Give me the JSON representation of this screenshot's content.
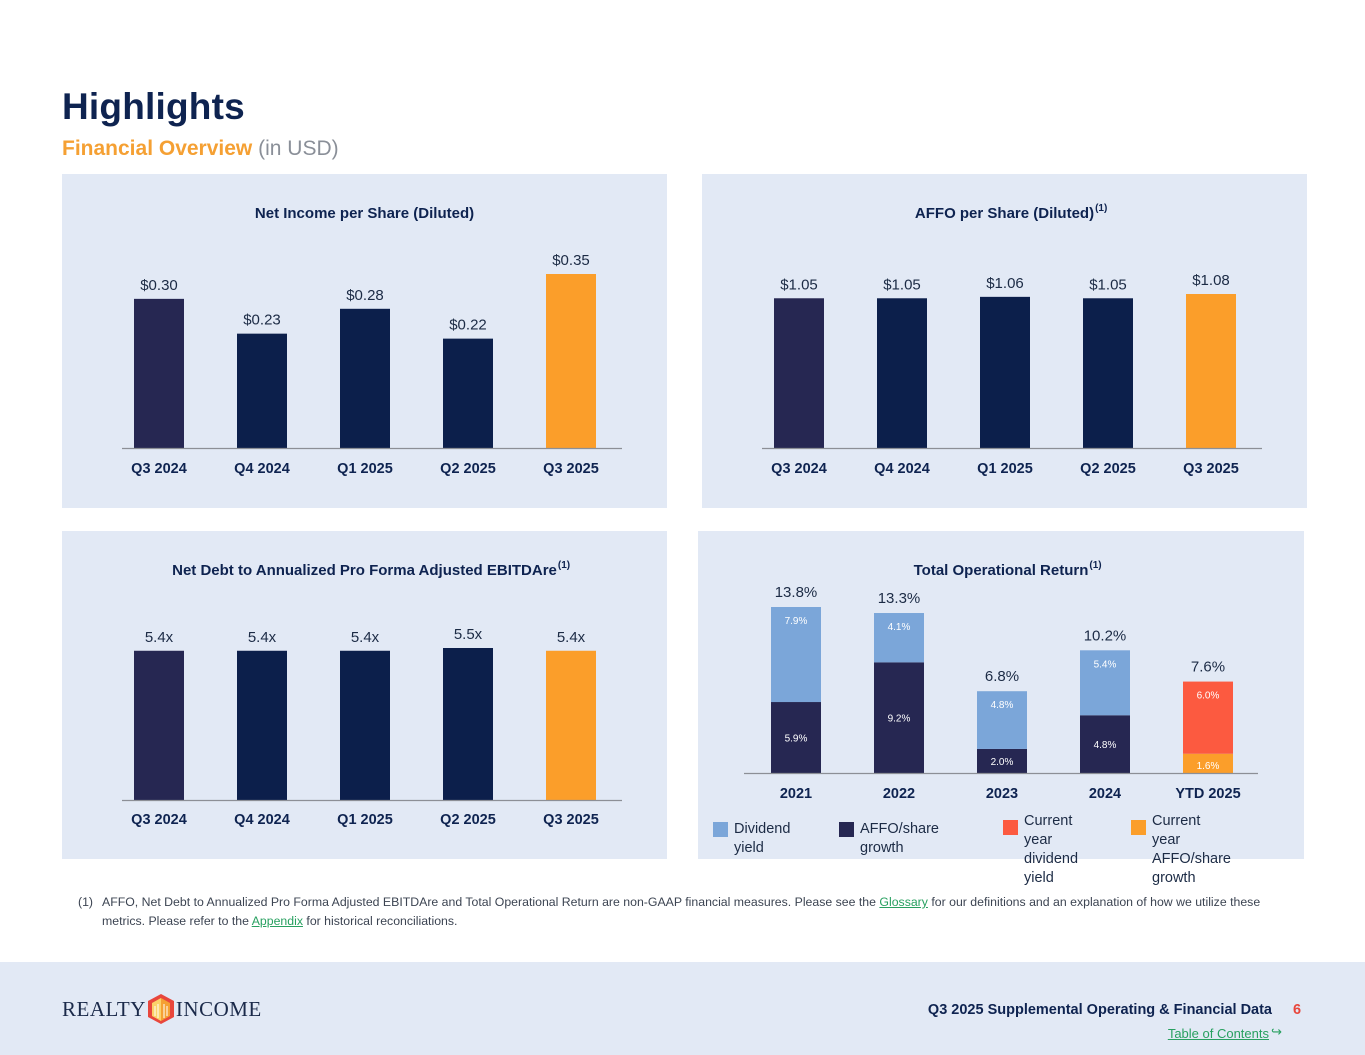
{
  "header": {
    "title": "Highlights",
    "subtitle_accent": "Financial Overview",
    "subtitle_muted": "(in USD)"
  },
  "colors": {
    "navy_dark": "#262752",
    "navy": "#0c1f4b",
    "orange": "#fb9e2a",
    "light_blue": "#7ba6d9",
    "red_orange": "#fc5a40",
    "panel_bg": "#e2e9f5"
  },
  "chart_data": [
    {
      "type": "bar",
      "title": "Net Income per Share (Diluted)",
      "footnote_ref": "",
      "categories": [
        "Q3 2024",
        "Q4 2024",
        "Q1 2025",
        "Q2 2025",
        "Q3 2025"
      ],
      "values": [
        0.3,
        0.23,
        0.28,
        0.22,
        0.35
      ],
      "labels": [
        "$0.30",
        "$0.23",
        "$0.28",
        "$0.22",
        "$0.35"
      ],
      "ylim": [
        0,
        0.35
      ]
    },
    {
      "type": "bar",
      "title": "AFFO per Share (Diluted)",
      "footnote_ref": "(1)",
      "categories": [
        "Q3 2024",
        "Q4 2024",
        "Q1 2025",
        "Q2 2025",
        "Q3 2025"
      ],
      "values": [
        1.05,
        1.05,
        1.06,
        1.05,
        1.08
      ],
      "labels": [
        "$1.05",
        "$1.05",
        "$1.06",
        "$1.05",
        "$1.08"
      ],
      "ylim": [
        0,
        1.08
      ]
    },
    {
      "type": "bar",
      "title": "Net Debt to Annualized Pro Forma Adjusted EBITDAre",
      "footnote_ref": "(1)",
      "categories": [
        "Q3 2024",
        "Q4 2024",
        "Q1 2025",
        "Q2 2025",
        "Q3 2025"
      ],
      "values": [
        5.4,
        5.4,
        5.4,
        5.5,
        5.4
      ],
      "labels": [
        "5.4x",
        "5.4x",
        "5.4x",
        "5.5x",
        "5.4x"
      ],
      "ylim": [
        0,
        5.5
      ]
    },
    {
      "type": "bar",
      "stacked": true,
      "title": "Total Operational Return",
      "footnote_ref": "(1)",
      "categories": [
        "2021",
        "2022",
        "2023",
        "2024",
        "YTD 2025"
      ],
      "series": [
        {
          "name": "AFFO/share growth",
          "values": [
            5.9,
            9.2,
            2.0,
            4.8,
            null
          ],
          "labels": [
            "5.9%",
            "9.2%",
            "2.0%",
            "4.8%",
            ""
          ]
        },
        {
          "name": "Dividend yield",
          "values": [
            7.9,
            4.1,
            4.8,
            5.4,
            null
          ],
          "labels": [
            "7.9%",
            "4.1%",
            "4.8%",
            "5.4%",
            ""
          ]
        },
        {
          "name": "Current year AFFO/share growth",
          "values": [
            null,
            null,
            null,
            null,
            1.6
          ],
          "labels": [
            "",
            "",
            "",
            "",
            "1.6%"
          ]
        },
        {
          "name": "Current year dividend yield",
          "values": [
            null,
            null,
            null,
            null,
            6.0
          ],
          "labels": [
            "",
            "",
            "",
            "",
            "6.0%"
          ]
        }
      ],
      "totals": [
        "13.8%",
        "13.3%",
        "6.8%",
        "10.2%",
        "7.6%"
      ],
      "ylim": [
        0,
        13.8
      ]
    }
  ],
  "legend": [
    {
      "label": "Dividend yield",
      "color": "#7ba6d9"
    },
    {
      "label": "AFFO/share growth",
      "color": "#262752"
    },
    {
      "label": "Current year dividend yield",
      "color": "#fc5a40",
      "line1": "Current year",
      "line2": "dividend yield"
    },
    {
      "label": "Current year AFFO/share growth",
      "color": "#fb9e2a",
      "line1": "Current year",
      "line2": "AFFO/share growth"
    }
  ],
  "footnote": {
    "number": "(1)",
    "text_part1": "AFFO, Net Debt to Annualized Pro Forma Adjusted EBITDAre and Total Operational Return are non-GAAP financial measures. Please see the",
    "glossary_link": "Glossary",
    "text_part2": "for our definitions and an explanation of how we utilize these metrics. Please refer to the",
    "appendix_link": "Appendix",
    "text_part3": "for historical reconciliations."
  },
  "footer": {
    "logo_left": "REALTY",
    "logo_right": "INCOME",
    "doc_title": "Q3 2025 Supplemental Operating & Financial Data",
    "page_number": "6",
    "toc_link": "Table of Contents"
  }
}
